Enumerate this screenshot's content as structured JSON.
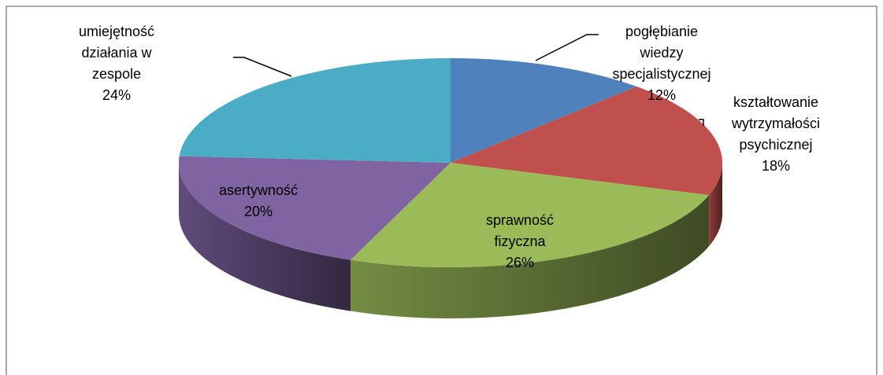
{
  "chart_data": {
    "type": "pie3d",
    "categories": [
      "pogłębianie\nwiedzy\nspecjalistycznej",
      "kształtowanie\nwytrzymałości\npsychicznej",
      "sprawność\nfizyczna",
      "asertywność",
      "umiejętność\ndziałania w\nzespole"
    ],
    "values": [
      12,
      18,
      26,
      20,
      24
    ],
    "value_labels": [
      "12%",
      "18%",
      "26%",
      "20%",
      "24%"
    ],
    "colors": [
      "#4f81bd",
      "#c0504d",
      "#9bbb59",
      "#8064a2",
      "#4bacc6"
    ]
  }
}
